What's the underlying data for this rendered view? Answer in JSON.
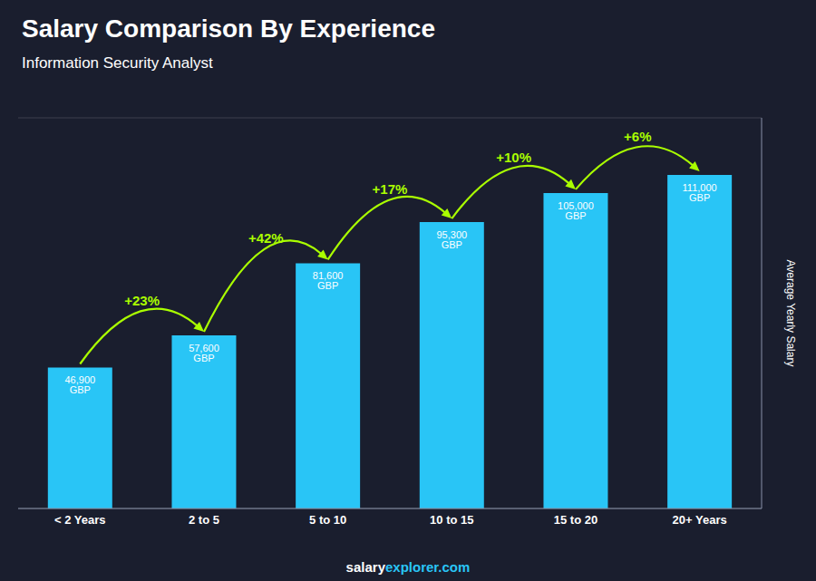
{
  "chart_data": {
    "type": "bar",
    "title": "Salary Comparison By Experience",
    "subtitle": "Information Security Analyst",
    "y_label": "Average Yearly Salary",
    "categories": [
      "< 2 Years",
      "2 to 5",
      "5 to 10",
      "10 to 15",
      "15 to 20",
      "20+ Years"
    ],
    "values": [
      46900,
      57600,
      81600,
      95300,
      105000,
      111000
    ],
    "value_labels": [
      "46,900 GBP",
      "57,600 GBP",
      "81,600 GBP",
      "95,300 GBP",
      "105,000 GBP",
      "111,000 GBP"
    ],
    "data_labels": true,
    "color": "#29c5f6",
    "ylim": [
      0,
      130000
    ],
    "yticks": [
      20000,
      40000,
      60000,
      80000,
      100000,
      120000
    ],
    "grid": true,
    "tick_labels": "x",
    "annotations": [
      {
        "text": "+23%",
        "from": "< 2 Years",
        "to": "2 to 5",
        "color": "#aaff00"
      },
      {
        "text": "+42%",
        "from": "2 to 5",
        "to": "5 to 10",
        "color": "#aaff00"
      },
      {
        "text": "+17%",
        "from": "5 to 10",
        "to": "10 to 15",
        "color": "#aaff00"
      },
      {
        "text": "+10%",
        "from": "10 to 15",
        "to": "15 to 20",
        "color": "#aaff00"
      },
      {
        "text": "+6%",
        "from": "15 to 20",
        "to": "20+ Years",
        "color": "#aaff00"
      },
      {
        "text": "salary",
        "color": "#ffffff"
      },
      {
        "text": "explorer.com",
        "color": "#29c5f6"
      }
    ]
  }
}
